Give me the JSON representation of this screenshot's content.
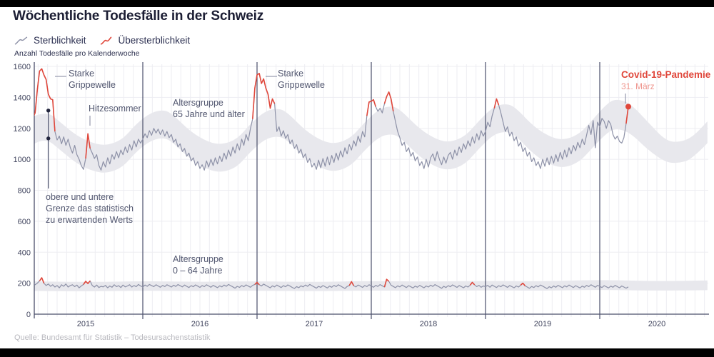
{
  "header": {
    "title": "Wöchentliche Todesfälle in der Schweiz"
  },
  "legend": {
    "items": [
      {
        "label": "Sterblichkeit",
        "color": "#8d91a7"
      },
      {
        "label": "Übersterblichkeit",
        "color": "#e0473b"
      }
    ]
  },
  "colors": {
    "red": "#e0473b",
    "red_muted": "#ef968e",
    "line_gray": "#8d91a7",
    "band": "#e8e8ed",
    "navy": "#4b4f6b",
    "dot_dark": "#23263e",
    "grid": "#ededf2",
    "tick_text": "#42465f",
    "leader": "#8b90a6"
  },
  "annotations": {
    "flu_2015": {
      "line1": "Starke",
      "line2": "Grippewelle"
    },
    "flu_2017": {
      "line1": "Starke",
      "line2": "Grippewelle"
    },
    "heat_2015": {
      "label": "Hitzesommer"
    },
    "group65": {
      "line1": "Altersgruppe",
      "line2": "65 Jahre und älter"
    },
    "bounds": {
      "line1": "obere und untere",
      "line2": "Grenze das statistisch",
      "line3": "zu erwartenden Werts"
    },
    "group064": {
      "line1": "Altersgruppe",
      "line2": "0 – 64 Jahre"
    },
    "covid": {
      "title": "Covid-19-Pandemie",
      "date": "31. März"
    }
  },
  "footer": {
    "source": "Quelle: Bundesamt für Statistik – Todesursachenstatistik"
  },
  "chart_data": {
    "type": "line",
    "title": "Wöchentliche Todesfälle in der Schweiz",
    "ylabel": "Anzahl Todesfälle pro Kalenderwoche",
    "ylim": [
      0,
      1600
    ],
    "yticks": [
      0,
      200,
      400,
      600,
      800,
      1000,
      1200,
      1400,
      1600
    ],
    "x_years": [
      "2015",
      "2016",
      "2017",
      "2018",
      "2019",
      "2020"
    ],
    "weeks_per_year": 52,
    "grid": "on",
    "legend_position": "top-left",
    "series": [
      {
        "name": "Altersgruppe 65 Jahre und älter",
        "unit": "Todesfälle pro Woche",
        "values": [
          1245,
          1310,
          1270,
          1300,
          1450,
          1570,
          1585,
          1545,
          1515,
          1420,
          1390,
          1385,
          1180,
          1125,
          1150,
          1100,
          1145,
          1090,
          1130,
          1075,
          1040,
          1090,
          1030,
          1000,
          960,
          935,
          1005,
          1165,
          1070,
          1040,
          1005,
          1030,
          960,
          930,
          985,
          950,
          1010,
          970,
          1030,
          1000,
          1050,
          1010,
          1060,
          1030,
          1080,
          1045,
          1095,
          1060,
          1120,
          1080,
          1130,
          1105,
          1130,
          1165,
          1140,
          1185,
          1155,
          1200,
          1170,
          1195,
          1160,
          1190,
          1150,
          1180,
          1140,
          1160,
          1110,
          1130,
          1080,
          1100,
          1050,
          1070,
          1020,
          1040,
          990,
          1010,
          960,
          985,
          940,
          965,
          930,
          990,
          950,
          1000,
          960,
          1010,
          970,
          1020,
          985,
          1040,
          1000,
          1060,
          1020,
          1080,
          1040,
          1100,
          1060,
          1130,
          1090,
          1160,
          1120,
          1200,
          1260,
          1460,
          1545,
          1555,
          1490,
          1520,
          1460,
          1420,
          1330,
          1390,
          1360,
          1180,
          1210,
          1150,
          1185,
          1135,
          1160,
          1100,
          1125,
          1070,
          1095,
          1040,
          1065,
          1010,
          1035,
          980,
          1005,
          950,
          975,
          935,
          995,
          945,
          1005,
          955,
          1015,
          965,
          1025,
          980,
          1040,
          995,
          1055,
          1015,
          1075,
          1035,
          1095,
          1060,
          1120,
          1085,
          1150,
          1110,
          1180,
          1145,
          1280,
          1370,
          1375,
          1385,
          1340,
          1310,
          1330,
          1300,
          1360,
          1405,
          1435,
          1390,
          1310,
          1245,
          1180,
          1140,
          1090,
          1110,
          1050,
          1075,
          1020,
          1045,
          990,
          1015,
          960,
          985,
          940,
          1000,
          950,
          1010,
          1035,
          990,
          1050,
          1000,
          965,
          1015,
          975,
          1025,
          1045,
          1000,
          1060,
          1025,
          1080,
          1045,
          1100,
          1065,
          1120,
          1085,
          1145,
          1105,
          1165,
          1125,
          1185,
          1150,
          1180,
          1240,
          1210,
          1280,
          1330,
          1390,
          1350,
          1300,
          1240,
          1180,
          1210,
          1150,
          1175,
          1120,
          1145,
          1085,
          1110,
          1050,
          1075,
          1020,
          1045,
          985,
          1010,
          960,
          985,
          940,
          1000,
          955,
          1010,
          965,
          1020,
          975,
          1030,
          985,
          1045,
          1000,
          1060,
          1015,
          1075,
          1035,
          1090,
          1055,
          1110,
          1075,
          1130,
          1095,
          1155,
          1220,
          1160,
          1250,
          1075,
          1240,
          1210,
          1265,
          1245,
          1200,
          1250,
          1225,
          1160,
          1130,
          1150,
          1115,
          1105,
          1140,
          1230,
          1340
        ],
        "red_segments": [
          [
            0,
            12
          ],
          [
            26,
            28
          ],
          [
            102,
            112
          ],
          [
            154,
            158
          ],
          [
            162,
            166
          ],
          [
            212,
            214
          ],
          [
            272,
            273
          ]
        ]
      },
      {
        "name": "Altersgruppe 0 – 64 Jahre",
        "unit": "Todesfälle pro Woche",
        "values": [
          205,
          195,
          210,
          190,
          200,
          215,
          235,
          200,
          185,
          195,
          180,
          190,
          175,
          185,
          170,
          190,
          180,
          195,
          175,
          185,
          190,
          178,
          188,
          170,
          182,
          192,
          212,
          198,
          215,
          185,
          175,
          188,
          172,
          180,
          176,
          186,
          170,
          182,
          174,
          190,
          178,
          184,
          172,
          188,
          176,
          182,
          190,
          175,
          185,
          178,
          192,
          182,
          175,
          188,
          180,
          192,
          185,
          178,
          190,
          182,
          174,
          186,
          178,
          190,
          183,
          175,
          187,
          179,
          191,
          184,
          176,
          188,
          180,
          172,
          184,
          177,
          189,
          181,
          173,
          185,
          178,
          190,
          182,
          174,
          186,
          179,
          171,
          183,
          176,
          188,
          180,
          192,
          184,
          176,
          168,
          180,
          173,
          185,
          177,
          189,
          181,
          174,
          186,
          192,
          205,
          190,
          182,
          194,
          186,
          178,
          170,
          183,
          176,
          188,
          180,
          172,
          184,
          177,
          189,
          181,
          173,
          166,
          178,
          171,
          183,
          176,
          188,
          180,
          192,
          184,
          176,
          168,
          180,
          173,
          185,
          177,
          169,
          181,
          174,
          186,
          178,
          190,
          182,
          174,
          166,
          179,
          185,
          210,
          184,
          176,
          188,
          181,
          173,
          185,
          178,
          190,
          182,
          174,
          186,
          179,
          191,
          183,
          175,
          225,
          212,
          187,
          179,
          171,
          183,
          176,
          188,
          180,
          172,
          184,
          177,
          169,
          181,
          174,
          186,
          178,
          170,
          182,
          175,
          187,
          179,
          191,
          183,
          175,
          167,
          180,
          172,
          184,
          177,
          189,
          181,
          173,
          185,
          178,
          170,
          182,
          175,
          187,
          205,
          190,
          178,
          186,
          174,
          182,
          178,
          186,
          174,
          188,
          180,
          172,
          184,
          177,
          189,
          181,
          173,
          185,
          178,
          170,
          182,
          175,
          187,
          200,
          183,
          175,
          167,
          179,
          172,
          184,
          176,
          188,
          181,
          173,
          165,
          177,
          170,
          182,
          174,
          186,
          179,
          171,
          183,
          176,
          188,
          180,
          172,
          184,
          177,
          169,
          181,
          174,
          186,
          178,
          190,
          182,
          174,
          186,
          180,
          172,
          184,
          177,
          169,
          181,
          174,
          186,
          178,
          170,
          182,
          175,
          168,
          176
        ],
        "red_segments": [
          [
            5,
            7
          ],
          [
            25,
            28
          ],
          [
            103,
            105
          ],
          [
            146,
            148
          ],
          [
            162,
            164
          ],
          [
            201,
            203
          ],
          [
            224,
            226
          ]
        ]
      }
    ],
    "expected_band_65plus": {
      "description": "obere und untere Grenze das statistisch zu erwartenden Werts",
      "t_weeks": [
        0,
        8,
        14,
        22,
        30,
        36,
        43,
        49,
        56,
        62,
        66,
        74,
        82,
        88,
        95,
        101,
        108,
        114,
        118,
        126,
        134,
        140,
        147,
        153,
        160,
        166,
        170,
        178,
        186,
        192,
        199,
        205,
        212,
        218,
        222,
        230,
        238,
        244,
        251,
        257,
        264,
        268,
        274,
        282,
        290,
        296,
        302,
        309
      ],
      "upper": [
        1265,
        1315,
        1245,
        1150,
        1100,
        1090,
        1130,
        1230,
        1305,
        1320,
        1285,
        1175,
        1110,
        1095,
        1130,
        1230,
        1315,
        1330,
        1300,
        1185,
        1115,
        1100,
        1140,
        1240,
        1330,
        1345,
        1310,
        1195,
        1125,
        1110,
        1150,
        1250,
        1345,
        1360,
        1330,
        1210,
        1140,
        1125,
        1165,
        1260,
        1370,
        1390,
        1360,
        1240,
        1120,
        1110,
        1140,
        1245
      ],
      "lower": [
        1085,
        1135,
        1065,
        970,
        920,
        910,
        950,
        1050,
        1125,
        1140,
        1105,
        995,
        930,
        915,
        950,
        1050,
        1135,
        1150,
        1120,
        1005,
        935,
        920,
        960,
        1060,
        1150,
        1165,
        1130,
        1015,
        945,
        930,
        970,
        1070,
        1165,
        1180,
        1150,
        1030,
        960,
        945,
        985,
        1080,
        1180,
        1200,
        1170,
        1060,
        980,
        975,
        1000,
        1105
      ]
    },
    "expected_band_0_64": {
      "t_weeks": [
        0,
        26,
        52,
        78,
        104,
        130,
        156,
        182,
        208,
        234,
        260,
        286,
        309
      ],
      "upper": [
        212,
        206,
        214,
        208,
        213,
        207,
        215,
        210,
        216,
        212,
        222,
        212,
        218
      ],
      "lower": [
        150,
        147,
        152,
        149,
        152,
        148,
        153,
        150,
        154,
        151,
        158,
        151,
        155
      ]
    },
    "markers": {
      "expected_bounds": {
        "week": 9,
        "upper": 1315,
        "lower": 1135
      },
      "covid_point": {
        "week_index": 273,
        "value": 1340,
        "label": "Covid-19-Pandemie",
        "date": "31. März"
      }
    }
  }
}
